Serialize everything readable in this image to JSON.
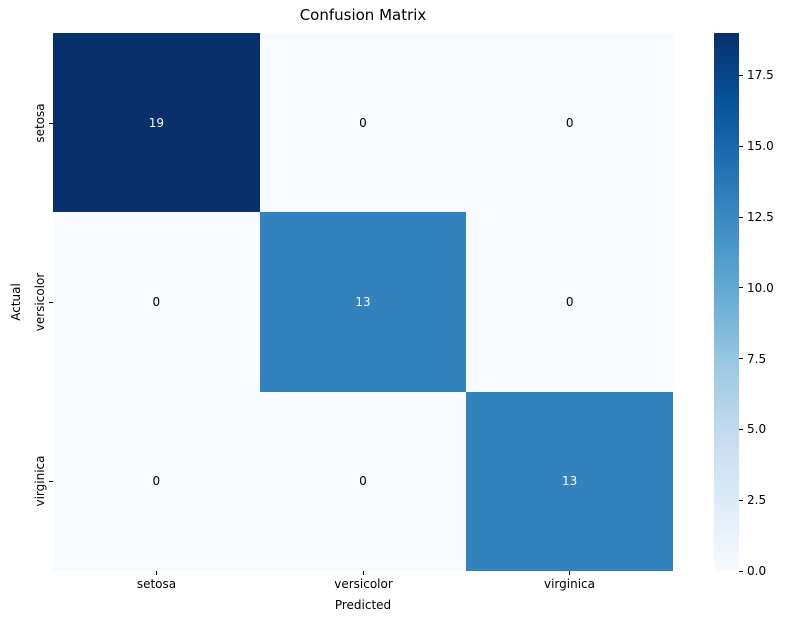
{
  "chart_data": {
    "type": "heatmap",
    "title": "Confusion Matrix",
    "xlabel": "Predicted",
    "ylabel": "Actual",
    "x_categories": [
      "setosa",
      "versicolor",
      "virginica"
    ],
    "y_categories": [
      "setosa",
      "versicolor",
      "virginica"
    ],
    "matrix": [
      [
        19,
        0,
        0
      ],
      [
        0,
        13,
        0
      ],
      [
        0,
        0,
        13
      ]
    ],
    "vmin": 0,
    "vmax": 19,
    "colormap": "Blues",
    "cell_colors": [
      [
        "#08306b",
        "#f7fbff",
        "#f7fbff"
      ],
      [
        "#f7fbff",
        "#3282be",
        "#f7fbff"
      ],
      [
        "#f7fbff",
        "#f7fbff",
        "#3282be"
      ]
    ],
    "annot_colors": [
      [
        "#ffffff",
        "#000000",
        "#000000"
      ],
      [
        "#000000",
        "#ffffff",
        "#000000"
      ],
      [
        "#000000",
        "#000000",
        "#ffffff"
      ]
    ],
    "colorbar": {
      "tick_labels": [
        "17.5",
        "15.0",
        "12.5",
        "10.0",
        "7.5",
        "5.0",
        "2.5",
        "0.0"
      ],
      "tick_values": [
        17.5,
        15.0,
        12.5,
        10.0,
        7.5,
        5.0,
        2.5,
        0.0
      ],
      "gradient_top_to_bottom": [
        "#08306b",
        "#08519c",
        "#2171b5",
        "#4292c6",
        "#6baed6",
        "#9ecae1",
        "#c6dbef",
        "#deebf7",
        "#f7fbff"
      ]
    }
  }
}
